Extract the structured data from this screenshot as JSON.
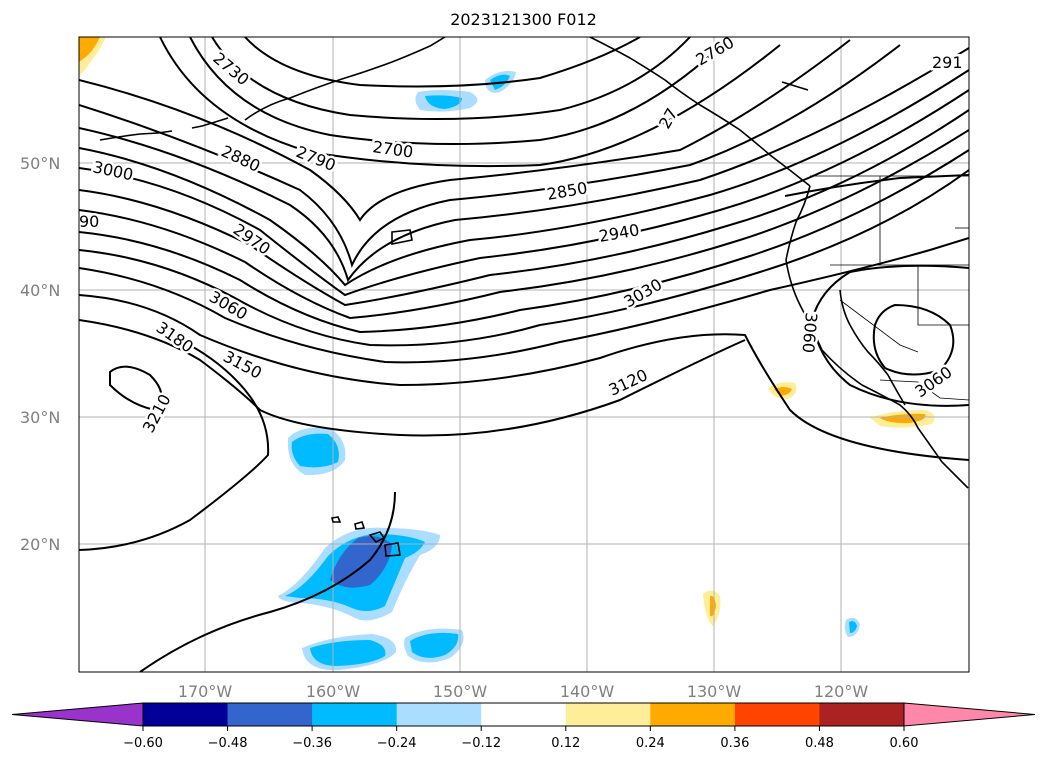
{
  "title": "2023121300 F012",
  "latitude_labels": [
    "50°N",
    "40°N",
    "30°N",
    "20°N"
  ],
  "longitude_labels": [
    "170°W",
    "160°W",
    "150°W",
    "140°W",
    "130°W",
    "120°W"
  ],
  "colorbar": {
    "ticks": [
      "−0.60",
      "−0.48",
      "−0.36",
      "−0.24",
      "−0.12",
      "0.12",
      "0.24",
      "0.36",
      "0.48",
      "0.60"
    ],
    "colors": [
      "#9933cc",
      "#000099",
      "#3366cc",
      "#00bbff",
      "#aaddff",
      "#ffffff",
      "#ffee99",
      "#ffaa00",
      "#ff4400",
      "#aa2222",
      "#ff88aa"
    ]
  },
  "contour_labels": [
    "2730",
    "2760",
    "291",
    "2700",
    "2790",
    "2880",
    "3000",
    "90",
    "2850",
    "2940",
    "2970",
    "3060",
    "3030",
    "3180",
    "3150",
    "3120",
    "3210",
    "3060",
    "3060",
    "27"
  ],
  "colors": {
    "grid": "#b0b0b0",
    "contour": "#000000",
    "axis_label": "#808080"
  }
}
